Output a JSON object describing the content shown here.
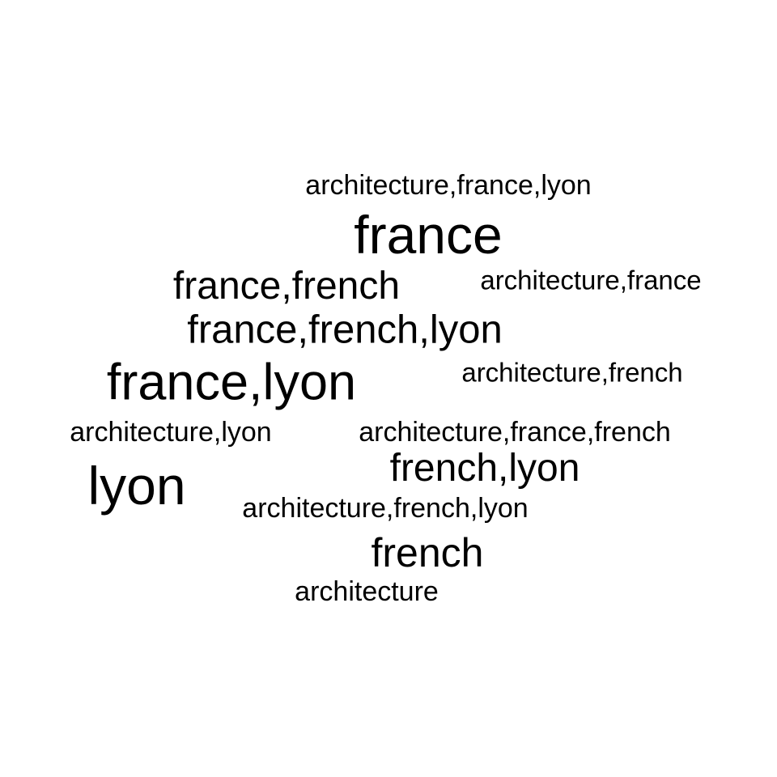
{
  "word_cloud": {
    "words": [
      "architecture,france,lyon",
      "france",
      "france,french",
      "architecture,france",
      "france,french,lyon",
      "france,lyon",
      "architecture,french",
      "architecture,lyon",
      "architecture,france,french",
      "french,lyon",
      "lyon",
      "architecture,french,lyon",
      "french",
      "architecture"
    ],
    "text_color": "#000000",
    "background_color": "#ffffff"
  }
}
